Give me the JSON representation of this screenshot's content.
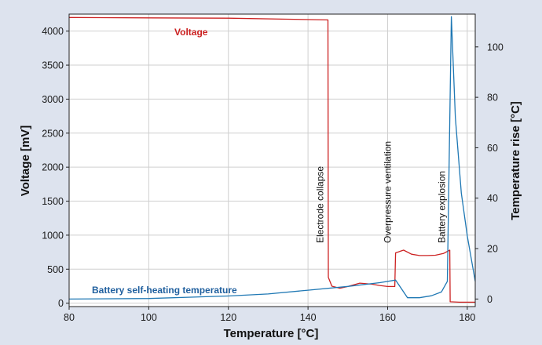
{
  "chart_data": {
    "type": "line",
    "xlabel": "Temperature [°C]",
    "ylabel_left": "Voltage [mV]",
    "ylabel_right": "Temperature rise [°C]",
    "xlim": [
      80,
      182
    ],
    "ylim_left": [
      -50,
      4250
    ],
    "ylim_right": [
      -3,
      113
    ],
    "x_ticks": [
      "80",
      "100",
      "120",
      "140",
      "160",
      "180"
    ],
    "y_left_ticks": [
      "0",
      "500",
      "1000",
      "1500",
      "2000",
      "2500",
      "3000",
      "3500",
      "4000"
    ],
    "y_right_ticks": [
      "0",
      "20",
      "40",
      "60",
      "80",
      "100"
    ],
    "grid": true,
    "series": [
      {
        "name": "Voltage",
        "axis": "left",
        "color": "#cc2222",
        "points": [
          [
            80,
            4200
          ],
          [
            100,
            4195
          ],
          [
            120,
            4190
          ],
          [
            135,
            4175
          ],
          [
            145,
            4165
          ],
          [
            145.1,
            380
          ],
          [
            146,
            250
          ],
          [
            148,
            220
          ],
          [
            150,
            245
          ],
          [
            153,
            295
          ],
          [
            156,
            280
          ],
          [
            158,
            260
          ],
          [
            160,
            245
          ],
          [
            161.8,
            245
          ],
          [
            162,
            740
          ],
          [
            164,
            780
          ],
          [
            166,
            720
          ],
          [
            168,
            700
          ],
          [
            170,
            700
          ],
          [
            172,
            705
          ],
          [
            174,
            730
          ],
          [
            175.6,
            780
          ],
          [
            175.7,
            20
          ],
          [
            178,
            15
          ],
          [
            182,
            15
          ]
        ]
      },
      {
        "name": "Battery self-heating temperature",
        "axis": "right",
        "color": "#1f78b4",
        "points": [
          [
            80,
            0
          ],
          [
            100,
            0.2
          ],
          [
            120,
            1.2
          ],
          [
            130,
            2
          ],
          [
            140,
            3.5
          ],
          [
            150,
            5
          ],
          [
            158,
            6.5
          ],
          [
            162,
            7.5
          ],
          [
            165,
            0.5
          ],
          [
            168,
            0.5
          ],
          [
            171,
            1.3
          ],
          [
            173.5,
            2.8
          ],
          [
            175,
            7
          ],
          [
            176,
            112
          ],
          [
            177,
            72
          ],
          [
            178.5,
            42
          ],
          [
            180,
            25
          ],
          [
            182,
            7
          ]
        ]
      }
    ],
    "series_labels": [
      "Voltage",
      "Battery self-heating temperature"
    ],
    "annotations": [
      {
        "text": "Electrode collapse",
        "x": 145
      },
      {
        "text": "Overpressure ventilation",
        "x": 162
      },
      {
        "text": "Battery explosion",
        "x": 175.6
      }
    ]
  }
}
